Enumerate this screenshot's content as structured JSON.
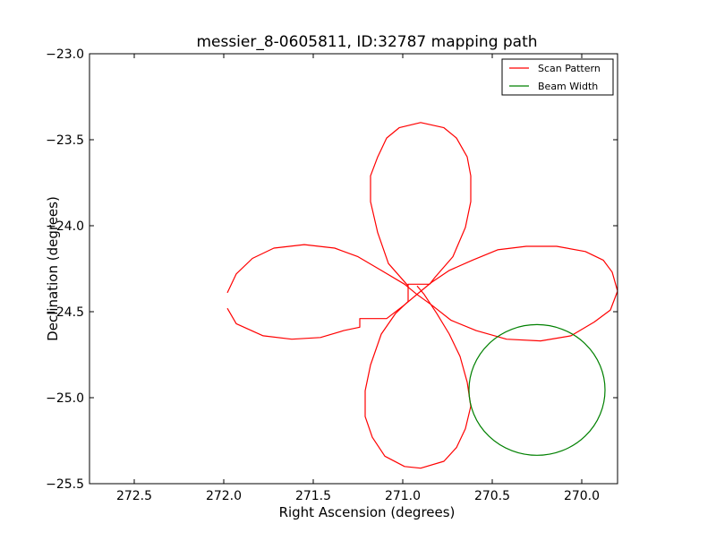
{
  "chart_data": {
    "type": "line",
    "title": "messier_8-0605811, ID:32787 mapping path",
    "xlabel": "Right Ascension (degrees)",
    "ylabel": "Declination (degrees)",
    "xlim": [
      272.75,
      269.8
    ],
    "ylim": [
      -25.5,
      -23.0
    ],
    "x_inverted": true,
    "grid": false,
    "legend_position": "top-right",
    "xticks": [
      {
        "value": 272.5,
        "label": "272.5"
      },
      {
        "value": 272.0,
        "label": "272.0"
      },
      {
        "value": 271.5,
        "label": "271.5"
      },
      {
        "value": 271.0,
        "label": "271.0"
      },
      {
        "value": 270.5,
        "label": "270.5"
      },
      {
        "value": 270.0,
        "label": "270.0"
      }
    ],
    "yticks": [
      {
        "value": -23.0,
        "label": "−23.0"
      },
      {
        "value": -23.5,
        "label": "−23.5"
      },
      {
        "value": -24.0,
        "label": "−24.0"
      },
      {
        "value": -24.5,
        "label": "−24.5"
      },
      {
        "value": -25.0,
        "label": "−25.0"
      },
      {
        "value": -25.5,
        "label": "−25.5"
      }
    ],
    "series": [
      {
        "name": "Scan Pattern",
        "color": "#ff0000",
        "points": [
          [
            271.98,
            -24.39
          ],
          [
            271.93,
            -24.28
          ],
          [
            271.84,
            -24.19
          ],
          [
            271.72,
            -24.13
          ],
          [
            271.55,
            -24.11
          ],
          [
            271.38,
            -24.13
          ],
          [
            271.25,
            -24.18
          ],
          [
            271.12,
            -24.26
          ],
          [
            270.99,
            -24.34
          ],
          [
            270.92,
            -24.4
          ],
          [
            270.84,
            -24.46
          ],
          [
            270.73,
            -24.55
          ],
          [
            270.59,
            -24.61
          ],
          [
            270.42,
            -24.66
          ],
          [
            270.23,
            -24.67
          ],
          [
            270.06,
            -24.64
          ],
          [
            269.93,
            -24.56
          ],
          [
            269.84,
            -24.49
          ],
          [
            269.8,
            -24.38
          ],
          [
            269.83,
            -24.27
          ],
          [
            269.88,
            -24.2
          ],
          [
            269.98,
            -24.15
          ],
          [
            270.14,
            -24.12
          ],
          [
            270.31,
            -24.12
          ],
          [
            270.47,
            -24.14
          ],
          [
            270.61,
            -24.2
          ],
          [
            270.74,
            -24.26
          ],
          [
            270.84,
            -24.33
          ],
          [
            270.91,
            -24.39
          ],
          [
            270.99,
            -24.46
          ],
          [
            271.09,
            -24.54
          ],
          [
            271.24,
            -24.54
          ],
          [
            271.24,
            -24.59
          ],
          [
            271.33,
            -24.61
          ],
          [
            271.46,
            -24.65
          ],
          [
            271.62,
            -24.66
          ],
          [
            271.78,
            -24.64
          ],
          [
            271.93,
            -24.57
          ],
          [
            271.98,
            -24.48
          ]
        ]
      },
      {
        "name": "Scan Pattern",
        "color": "#ff0000",
        "points": [
          [
            270.97,
            -24.35
          ],
          [
            271.08,
            -24.22
          ],
          [
            271.14,
            -24.04
          ],
          [
            271.18,
            -23.86
          ],
          [
            271.18,
            -23.71
          ],
          [
            271.14,
            -23.6
          ],
          [
            271.09,
            -23.49
          ],
          [
            271.02,
            -23.43
          ],
          [
            270.9,
            -23.4
          ],
          [
            270.77,
            -23.43
          ],
          [
            270.7,
            -23.49
          ],
          [
            270.64,
            -23.6
          ],
          [
            270.62,
            -23.71
          ],
          [
            270.62,
            -23.86
          ],
          [
            270.65,
            -24.01
          ],
          [
            270.72,
            -24.18
          ],
          [
            270.82,
            -24.3
          ],
          [
            270.85,
            -24.34
          ],
          [
            270.97,
            -24.34
          ],
          [
            270.97,
            -24.44
          ],
          [
            271.04,
            -24.51
          ],
          [
            271.12,
            -24.63
          ],
          [
            271.18,
            -24.81
          ],
          [
            271.21,
            -24.96
          ],
          [
            271.21,
            -25.11
          ],
          [
            271.17,
            -25.23
          ],
          [
            271.1,
            -25.34
          ],
          [
            270.99,
            -25.4
          ],
          [
            270.9,
            -25.41
          ],
          [
            270.77,
            -25.37
          ],
          [
            270.7,
            -25.29
          ],
          [
            270.65,
            -25.18
          ],
          [
            270.62,
            -25.05
          ],
          [
            270.64,
            -24.91
          ],
          [
            270.68,
            -24.76
          ],
          [
            270.74,
            -24.63
          ],
          [
            270.81,
            -24.51
          ],
          [
            270.88,
            -24.4
          ],
          [
            270.92,
            -24.35
          ]
        ]
      },
      {
        "name": "Beam Width",
        "color": "#008000",
        "circle": {
          "center": [
            270.25,
            -24.955
          ],
          "radius": 0.38
        }
      }
    ],
    "legend": [
      {
        "label": "Scan Pattern",
        "color": "#ff0000"
      },
      {
        "label": "Beam Width",
        "color": "#008000"
      }
    ]
  }
}
